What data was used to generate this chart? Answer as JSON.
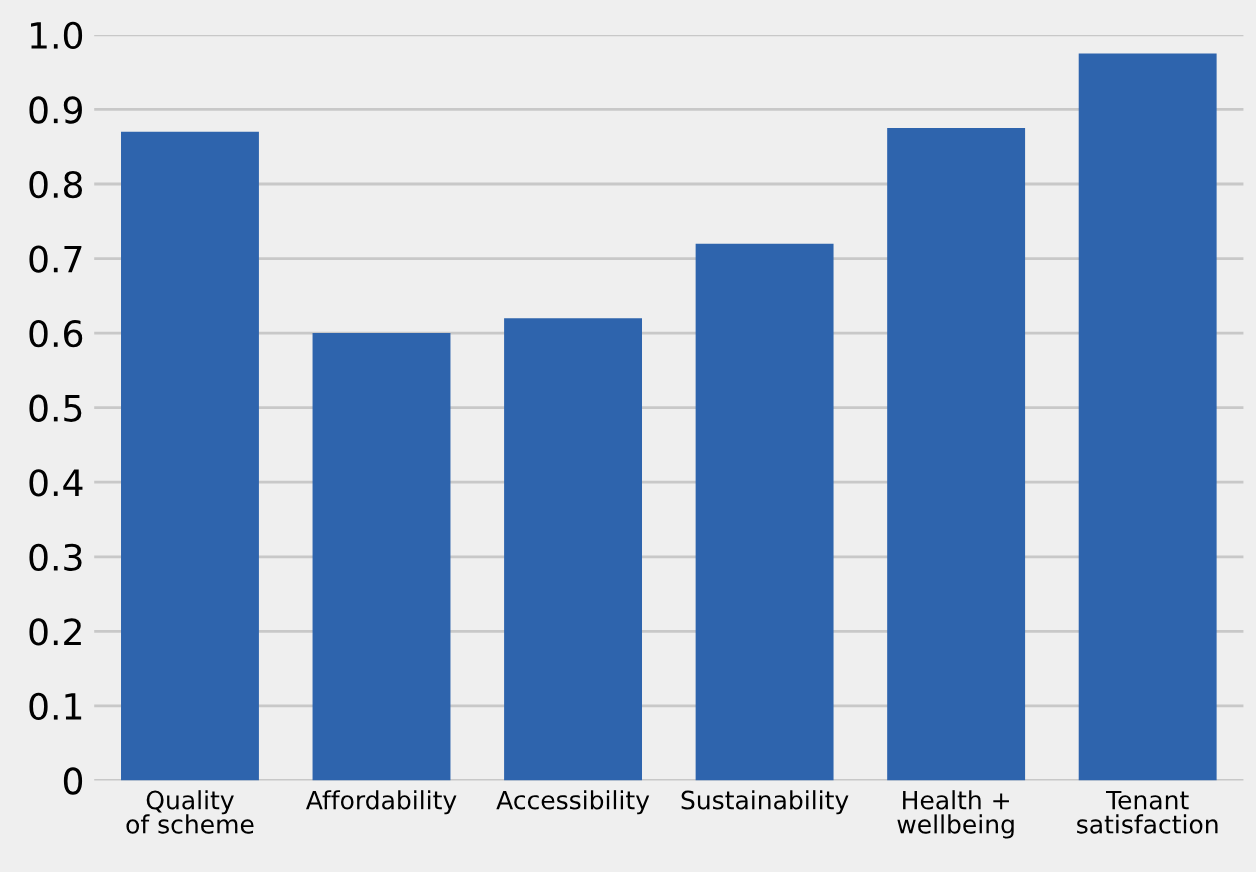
{
  "chart_data": {
    "type": "bar",
    "categories": [
      "Quality\nof scheme",
      "Affordability",
      "Accessibility",
      "Sustainability",
      "Health +\nwellbeing",
      "Tenant\nsatisfaction"
    ],
    "values": [
      0.87,
      0.6,
      0.62,
      0.72,
      0.875,
      0.975
    ],
    "color": "#2e64ad",
    "ylim": [
      0,
      1.0
    ],
    "yticks": [
      {
        "value": 0,
        "label": "0"
      },
      {
        "value": 0.1,
        "label": "0.1"
      },
      {
        "value": 0.2,
        "label": "0.2"
      },
      {
        "value": 0.3,
        "label": "0.3"
      },
      {
        "value": 0.4,
        "label": "0.4"
      },
      {
        "value": 0.5,
        "label": "0.5"
      },
      {
        "value": 0.6,
        "label": "0.6"
      },
      {
        "value": 0.7,
        "label": "0.7"
      },
      {
        "value": 0.8,
        "label": "0.8"
      },
      {
        "value": 0.9,
        "label": "0.9"
      },
      {
        "value": 1.0,
        "label": "1.0"
      }
    ],
    "grid": "y"
  }
}
